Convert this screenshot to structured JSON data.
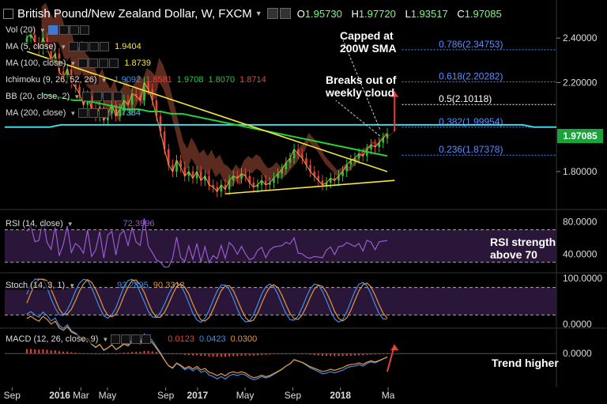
{
  "header": {
    "title": "British Pound/New Zealand Dollar, W, FXCM",
    "open_label": "O",
    "open": "1.95730",
    "high_label": "H",
    "high": "1.97720",
    "low_label": "L",
    "low": "1.93517",
    "close_label": "C",
    "close": "1.97085"
  },
  "indicators": {
    "vol": {
      "label": "Vol (20)"
    },
    "ma5": {
      "label": "MA (5, close)",
      "value": "1.9404"
    },
    "ma100": {
      "label": "MA (100, close)",
      "value": "1.8739"
    },
    "ichimoku": {
      "label": "Ichimoku (9, 26, 52, 26)",
      "values": [
        "1.9092",
        "1.8581",
        "1.9708",
        "1.8070",
        "1.8714"
      ]
    },
    "bb": {
      "label": "BB (20, close, 2)"
    },
    "ma200": {
      "label": "MA (200, close)",
      "value": "1.7384"
    }
  },
  "annotations": {
    "capped": [
      "Capped at",
      "200W SMA"
    ],
    "breaks": [
      "Breaks out of",
      "weekly cloud"
    ],
    "rsi_strength": [
      "RSI strength",
      "above 70"
    ],
    "trend_higher": "Trend higher"
  },
  "fib_levels": [
    {
      "label": "0.786(2.34753)",
      "value": 2.34753,
      "color": "#5b8cff"
    },
    {
      "label": "0.618(2.20282)",
      "value": 2.20282,
      "color": "#5b8cff"
    },
    {
      "label": "0.5(2.10118)",
      "value": 2.10118,
      "color": "#ffffff"
    },
    {
      "label": "0.382(1.99954)",
      "value": 1.99954,
      "color": "#5b8cff"
    },
    {
      "label": "0.236(1.87378)",
      "value": 1.87378,
      "color": "#5b8cff"
    }
  ],
  "price_tag": "1.97085",
  "colors": {
    "up": "#26c940",
    "down": "#e8403a",
    "ma5": "#e8a040",
    "ma100": "#26d038",
    "ma200": "#3fd7e6",
    "trendline": "#f5e63a",
    "cloud_bull": "#7a8a1e",
    "cloud_bear": "#7a3a2a",
    "rsi": "#9a5ad0",
    "stoch_k": "#3f8fe6",
    "stoch_d": "#e8963a",
    "macd": "#3f8fe6",
    "signal": "#e8963a",
    "hist": "#e8403a",
    "annot_arrow": "#e8403a",
    "price_tag": "#19a33a"
  },
  "chart_data": [
    {
      "type": "candlestick",
      "title": "British Pound/New Zealand Dollar, W, FXCM",
      "ylim": [
        1.64,
        2.5
      ],
      "yticks": [
        "2.40000",
        "2.20000",
        "1.80000"
      ],
      "x_labels": [
        "Sep",
        "2016",
        "Mar",
        "May",
        "Sep",
        "2017",
        "May",
        "Sep",
        "2018",
        "Ma"
      ],
      "x_label_weeks": [
        0,
        18,
        26,
        36,
        58,
        70,
        88,
        106,
        124,
        142
      ],
      "close_path": [
        2.4,
        2.42,
        2.38,
        2.35,
        2.4,
        2.36,
        2.3,
        2.33,
        2.25,
        2.22,
        2.26,
        2.2,
        2.18,
        2.15,
        2.1,
        2.14,
        2.08,
        2.05,
        2.09,
        2.03,
        2.06,
        2.1,
        2.05,
        2.08,
        2.12,
        2.1,
        2.15,
        2.14,
        2.12,
        2.2,
        2.17,
        2.12,
        2.05,
        1.98,
        1.9,
        1.83,
        1.8,
        1.85,
        1.82,
        1.78,
        1.8,
        1.77,
        1.8,
        1.76,
        1.78,
        1.74,
        1.73,
        1.71,
        1.74,
        1.72,
        1.76,
        1.78,
        1.77,
        1.79,
        1.78,
        1.75,
        1.73,
        1.74,
        1.76,
        1.74,
        1.75,
        1.77,
        1.79,
        1.81,
        1.84,
        1.86,
        1.9,
        1.88,
        1.86,
        1.83,
        1.8,
        1.78,
        1.76,
        1.74,
        1.75,
        1.77,
        1.76,
        1.78,
        1.8,
        1.83,
        1.85,
        1.86,
        1.88,
        1.87,
        1.9,
        1.92,
        1.91,
        1.93,
        1.95,
        1.97
      ],
      "ma200_path": [
        2.0,
        2.0,
        2.0,
        2.0,
        2.0,
        2.01,
        2.01,
        2.01,
        2.01,
        2.01,
        2.01,
        2.01,
        2.01,
        2.01,
        2.01,
        2.01,
        2.01,
        2.01,
        2.01,
        2.01,
        2.01,
        2.01,
        2.01,
        2.01,
        2.01,
        2.01,
        2.01,
        2.01,
        2.01,
        2.01,
        2.01,
        2.01,
        2.01,
        2.01,
        2.01,
        2.01,
        2.01,
        2.01,
        2.01,
        2.01,
        2.01,
        2.01,
        2.01,
        2.01,
        2.01,
        2.01,
        2.01,
        2.0,
        2.0,
        2.0
      ],
      "ma100_path": [
        2.15,
        2.14,
        2.13,
        2.12,
        2.12,
        2.11,
        2.1,
        2.09,
        2.08,
        2.08,
        2.07,
        2.07,
        2.06,
        2.06,
        2.05,
        2.04,
        2.03,
        2.02,
        2.01,
        2.0,
        1.99,
        1.98,
        1.97,
        1.96,
        1.95,
        1.94,
        1.93,
        1.92,
        1.91,
        1.9,
        1.89,
        1.88,
        1.87
      ],
      "trendline_down": [
        [
          6,
          2.34
        ],
        [
          104,
          1.8
        ]
      ],
      "trendline_up": [
        [
          60,
          1.7
        ],
        [
          106,
          1.76
        ]
      ]
    },
    {
      "type": "line",
      "name": "RSI (14, close)",
      "value": "72.3996",
      "yticks": [
        "80.0000",
        "40.0000"
      ],
      "ylim": [
        20,
        90
      ]
    },
    {
      "type": "line",
      "name": "Stoch (14, 3, 1)",
      "values": [
        "93.2895",
        "90.3312"
      ],
      "yticks": [
        "100.0000",
        "0.0000"
      ],
      "ylim": [
        0,
        100
      ]
    },
    {
      "type": "line",
      "name": "MACD (12, 26, close, 9)",
      "values": [
        "0.0123",
        "0.0423",
        "0.0300"
      ],
      "yticks": [
        "0.0000"
      ],
      "ylim": [
        -0.12,
        0.08
      ]
    }
  ]
}
